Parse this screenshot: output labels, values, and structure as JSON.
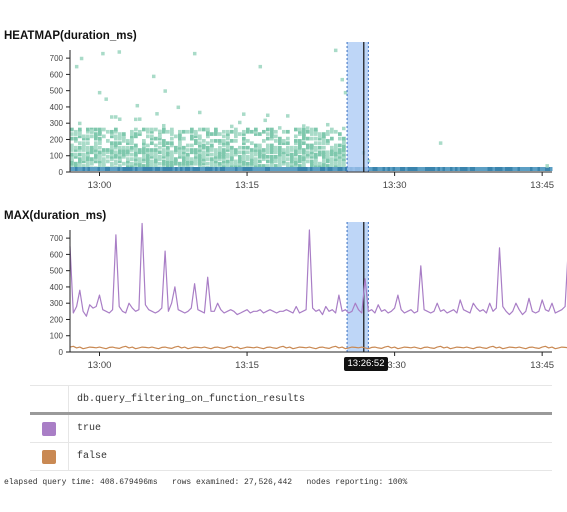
{
  "colors": {
    "heatmap_light": "#a9dbc8",
    "heatmap_mid": "#7fc8ad",
    "heatmap_base": "#3a84ad",
    "selection": "#a8c8f4",
    "true_series": "#a97ec6",
    "false_series": "#c98953",
    "axis": "#222222"
  },
  "chart_data": [
    {
      "type": "heatmap",
      "title": "HEATMAP(duration_ms)",
      "ylim": [
        0,
        750
      ],
      "yticks": [
        "0",
        "100",
        "200",
        "300",
        "400",
        "500",
        "600",
        "700"
      ],
      "xtick_labels": [
        "13:00",
        "13:15",
        "13:30",
        "13:45"
      ],
      "x_range": [
        "12:57",
        "13:46"
      ],
      "dense_band": {
        "from": "12:57",
        "to": "13:25",
        "y_min": 0,
        "y_max": 250
      },
      "baseline_band": {
        "from": "12:57",
        "to": "13:46",
        "y": 0
      },
      "sparse_points": [
        {
          "x": "12:57:30",
          "y": 640
        },
        {
          "x": "12:58:00",
          "y": 690
        },
        {
          "x": "13:00:10",
          "y": 720
        },
        {
          "x": "13:01:50",
          "y": 730
        },
        {
          "x": "12:59:50",
          "y": 480
        },
        {
          "x": "13:00:30",
          "y": 440
        },
        {
          "x": "13:03:40",
          "y": 400
        },
        {
          "x": "13:05:20",
          "y": 580
        },
        {
          "x": "13:06:30",
          "y": 490
        },
        {
          "x": "13:07:50",
          "y": 390
        },
        {
          "x": "13:09:30",
          "y": 720
        },
        {
          "x": "13:16:10",
          "y": 640
        },
        {
          "x": "13:23:50",
          "y": 740
        },
        {
          "x": "13:24:30",
          "y": 560
        },
        {
          "x": "13:05:40",
          "y": 350
        },
        {
          "x": "13:16:40",
          "y": 310
        },
        {
          "x": "13:24:50",
          "y": 480
        },
        {
          "x": "13:34:30",
          "y": 170
        },
        {
          "x": "13:45:20",
          "y": 30
        },
        {
          "x": "13:26:40",
          "y": 110
        },
        {
          "x": "13:27:10",
          "y": 60
        }
      ]
    },
    {
      "type": "line",
      "title": "MAX(duration_ms)",
      "ylim": [
        0,
        750
      ],
      "yticks": [
        "0",
        "100",
        "200",
        "300",
        "400",
        "500",
        "600",
        "700"
      ],
      "xtick_labels": [
        "13:00",
        "13:15",
        "13:45"
      ],
      "x_range": [
        "12:57",
        "13:46"
      ],
      "series": [
        {
          "name": "true",
          "x_start": "12:57",
          "step_seconds": 20,
          "values": [
            650,
            240,
            280,
            380,
            250,
            220,
            290,
            270,
            280,
            350,
            260,
            250,
            240,
            260,
            720,
            280,
            250,
            240,
            300,
            270,
            250,
            260,
            790,
            290,
            260,
            250,
            240,
            250,
            270,
            620,
            250,
            300,
            400,
            260,
            250,
            240,
            250,
            270,
            420,
            260,
            250,
            240,
            460,
            250,
            250,
            300,
            260,
            240,
            250,
            260,
            250,
            230,
            240,
            250,
            260,
            240,
            250,
            250,
            260,
            240,
            250,
            260,
            250,
            240,
            250,
            250,
            260,
            250,
            240,
            280,
            240,
            250,
            260,
            750,
            270,
            250,
            260,
            230,
            280,
            250,
            260,
            240,
            350,
            250,
            260,
            240,
            250,
            300,
            260,
            240,
            450,
            250,
            260,
            240,
            290,
            250,
            260,
            240,
            250,
            270,
            350,
            260,
            240,
            250,
            260,
            240,
            250,
            530,
            260,
            250,
            240,
            250,
            300,
            250,
            260,
            240,
            250,
            260,
            240,
            320,
            260,
            250,
            240,
            300,
            270,
            250,
            260,
            240,
            300,
            250,
            270,
            640,
            280,
            250,
            230,
            250,
            300,
            260,
            230,
            250,
            330,
            250,
            240,
            250,
            320,
            260,
            250,
            300,
            240,
            250,
            260,
            280,
            650,
            280,
            230,
            240,
            180,
            150,
            100
          ]
        },
        {
          "name": "false",
          "x_start": "12:57",
          "step_seconds": 20,
          "values": [
            30,
            35,
            25,
            30,
            20,
            25,
            30,
            28,
            26,
            30,
            25,
            20,
            28,
            30,
            25,
            22,
            30,
            35,
            25,
            30,
            20,
            25,
            30,
            28,
            26,
            30,
            25,
            20,
            28,
            30,
            25,
            22,
            30,
            35,
            25,
            30,
            20,
            25,
            30,
            28,
            26,
            30,
            25,
            20,
            28,
            30,
            25,
            22,
            30,
            35,
            25,
            30,
            20,
            25,
            30,
            28,
            26,
            30,
            25,
            20,
            28,
            30,
            25,
            22,
            30,
            35,
            25,
            30,
            20,
            25,
            30,
            28,
            26,
            30,
            25,
            20,
            28,
            30,
            25,
            22,
            30,
            35,
            25,
            30,
            20,
            25,
            30,
            28,
            26,
            30,
            25,
            20,
            28,
            30,
            25,
            22,
            30,
            35,
            25,
            30,
            20,
            25,
            30,
            28,
            26,
            30,
            25,
            20,
            28,
            30,
            25,
            22,
            30,
            35,
            25,
            30,
            20,
            25,
            30,
            28,
            26,
            30,
            25,
            20,
            28,
            30,
            25,
            22,
            30,
            35,
            25,
            30,
            20,
            25,
            30,
            28,
            26,
            30,
            25,
            20,
            28,
            30,
            25,
            22,
            30,
            35,
            25,
            30,
            20,
            25,
            30,
            28,
            26,
            30,
            25,
            20,
            28,
            30,
            25,
            22,
            30,
            35,
            25,
            30,
            20,
            25,
            30,
            28,
            26,
            30,
            25,
            20,
            28,
            30,
            25,
            22,
            30,
            35,
            25,
            30,
            20,
            25,
            30,
            28,
            26,
            30,
            25,
            20,
            28,
            30,
            25,
            22,
            30,
            35,
            25,
            30,
            20,
            25,
            30,
            28,
            26,
            30,
            25,
            20,
            28,
            30,
            25,
            22,
            30,
            35,
            25,
            30,
            20,
            25,
            30,
            28,
            26,
            30,
            25,
            20,
            28,
            30,
            25,
            22,
            30,
            35,
            25,
            30,
            20,
            25,
            30,
            28,
            26,
            30,
            25,
            20,
            28,
            30,
            25,
            22,
            30,
            35,
            25,
            30,
            20,
            25,
            200,
            35,
            25,
            30,
            20,
            25,
            30,
            28,
            26,
            30,
            25,
            20,
            28,
            30,
            25,
            22,
            30,
            35,
            25,
            30,
            20,
            25,
            30,
            28,
            26,
            30,
            25,
            20,
            28,
            30,
            25,
            22,
            30,
            35,
            25,
            30,
            20,
            25,
            30,
            28
          ]
        }
      ]
    }
  ],
  "selection": {
    "from": "13:25:10",
    "to": "13:27:20"
  },
  "cursor": {
    "label": "13:26:52",
    "time": "13:26:52",
    "partial_tick": "3:30"
  },
  "legend": {
    "header": "db.query_filtering_on_function_results",
    "rows": [
      {
        "label": "true",
        "color": "#a97ec6"
      },
      {
        "label": "false",
        "color": "#c98953"
      }
    ]
  },
  "footer": "elapsed query time: 408.679496ms   rows examined: 27,526,442   nodes reporting: 100%"
}
